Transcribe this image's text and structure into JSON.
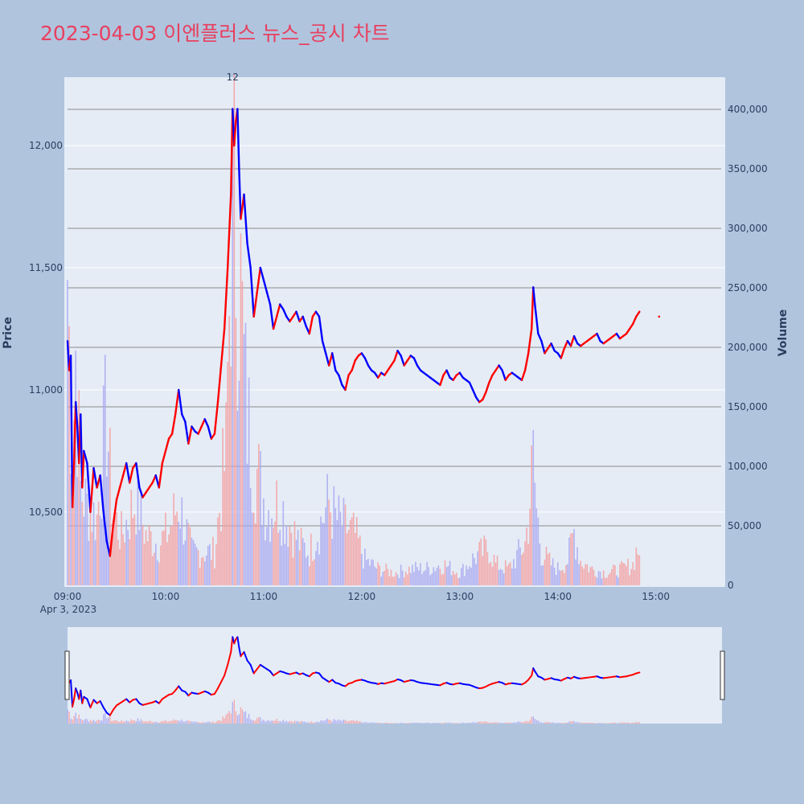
{
  "title": "2023-04-03 이엔플러스 뉴스_공시 차트",
  "colors": {
    "background": "#b0c4de",
    "plot_bg": "#e5ecf6",
    "up": "#ff0000",
    "down": "#0000ff",
    "title": "#e8405f",
    "grid": "#ffffff",
    "vol_grid": "#8c8c8c"
  },
  "chart_data": {
    "type": "line",
    "title": "2023-04-03 이엔플러스 뉴스_공시 차트",
    "price_axis": {
      "label": "Price",
      "range": [
        10200,
        12280
      ],
      "ticks": [
        10500,
        11000,
        11500,
        12000
      ],
      "tick_labels": [
        "10,500",
        "11,000",
        "11,500",
        "12,000"
      ]
    },
    "volume_axis": {
      "label": "Volume",
      "range": [
        0,
        427000
      ],
      "ticks": [
        0,
        50000,
        100000,
        150000,
        200000,
        250000,
        300000,
        350000,
        400000
      ],
      "tick_labels": [
        "0",
        "50,000",
        "100,000",
        "150,000",
        "200,000",
        "250,000",
        "300,000",
        "350,000",
        "400,000"
      ]
    },
    "time_axis": {
      "start_minute": 0,
      "end_minute": 400,
      "tick_minutes": [
        0,
        60,
        120,
        180,
        240,
        300,
        360
      ],
      "tick_labels": [
        "09:00",
        "10:00",
        "11:00",
        "12:00",
        "13:00",
        "14:00",
        "15:00"
      ],
      "date_label": "Apr 3, 2023"
    },
    "annotation": {
      "text": "12",
      "minute": 100
    },
    "price_series": [
      [
        0,
        11200
      ],
      [
        1,
        11080
      ],
      [
        2,
        11140
      ],
      [
        3,
        10520
      ],
      [
        4,
        10700
      ],
      [
        5,
        10950
      ],
      [
        6,
        10850
      ],
      [
        7,
        10700
      ],
      [
        8,
        10900
      ],
      [
        9,
        10600
      ],
      [
        10,
        10750
      ],
      [
        12,
        10700
      ],
      [
        14,
        10500
      ],
      [
        16,
        10680
      ],
      [
        18,
        10600
      ],
      [
        20,
        10650
      ],
      [
        22,
        10500
      ],
      [
        24,
        10380
      ],
      [
        26,
        10320
      ],
      [
        28,
        10450
      ],
      [
        30,
        10550
      ],
      [
        32,
        10600
      ],
      [
        34,
        10650
      ],
      [
        36,
        10700
      ],
      [
        38,
        10620
      ],
      [
        40,
        10680
      ],
      [
        42,
        10700
      ],
      [
        44,
        10600
      ],
      [
        46,
        10560
      ],
      [
        48,
        10580
      ],
      [
        50,
        10600
      ],
      [
        52,
        10620
      ],
      [
        54,
        10650
      ],
      [
        56,
        10600
      ],
      [
        58,
        10700
      ],
      [
        60,
        10750
      ],
      [
        62,
        10800
      ],
      [
        64,
        10820
      ],
      [
        66,
        10900
      ],
      [
        68,
        11000
      ],
      [
        70,
        10900
      ],
      [
        72,
        10870
      ],
      [
        74,
        10780
      ],
      [
        76,
        10850
      ],
      [
        78,
        10830
      ],
      [
        80,
        10820
      ],
      [
        82,
        10850
      ],
      [
        84,
        10880
      ],
      [
        86,
        10850
      ],
      [
        88,
        10800
      ],
      [
        90,
        10820
      ],
      [
        92,
        10950
      ],
      [
        94,
        11100
      ],
      [
        96,
        11250
      ],
      [
        98,
        11500
      ],
      [
        100,
        11800
      ],
      [
        101,
        12150
      ],
      [
        102,
        12000
      ],
      [
        103,
        12100
      ],
      [
        104,
        12150
      ],
      [
        105,
        11900
      ],
      [
        106,
        11700
      ],
      [
        108,
        11800
      ],
      [
        110,
        11600
      ],
      [
        112,
        11500
      ],
      [
        114,
        11300
      ],
      [
        116,
        11400
      ],
      [
        118,
        11500
      ],
      [
        120,
        11450
      ],
      [
        122,
        11400
      ],
      [
        124,
        11350
      ],
      [
        126,
        11250
      ],
      [
        128,
        11300
      ],
      [
        130,
        11350
      ],
      [
        132,
        11330
      ],
      [
        134,
        11300
      ],
      [
        136,
        11280
      ],
      [
        138,
        11300
      ],
      [
        140,
        11320
      ],
      [
        142,
        11280
      ],
      [
        144,
        11300
      ],
      [
        146,
        11260
      ],
      [
        148,
        11230
      ],
      [
        150,
        11300
      ],
      [
        152,
        11320
      ],
      [
        154,
        11300
      ],
      [
        156,
        11200
      ],
      [
        158,
        11150
      ],
      [
        160,
        11100
      ],
      [
        162,
        11150
      ],
      [
        164,
        11080
      ],
      [
        166,
        11060
      ],
      [
        168,
        11020
      ],
      [
        170,
        11000
      ],
      [
        172,
        11060
      ],
      [
        174,
        11080
      ],
      [
        176,
        11120
      ],
      [
        178,
        11140
      ],
      [
        180,
        11150
      ],
      [
        182,
        11130
      ],
      [
        184,
        11100
      ],
      [
        186,
        11080
      ],
      [
        188,
        11070
      ],
      [
        190,
        11050
      ],
      [
        192,
        11070
      ],
      [
        194,
        11060
      ],
      [
        196,
        11080
      ],
      [
        198,
        11100
      ],
      [
        200,
        11120
      ],
      [
        202,
        11160
      ],
      [
        204,
        11140
      ],
      [
        206,
        11100
      ],
      [
        208,
        11120
      ],
      [
        210,
        11140
      ],
      [
        212,
        11130
      ],
      [
        214,
        11100
      ],
      [
        216,
        11080
      ],
      [
        218,
        11070
      ],
      [
        220,
        11060
      ],
      [
        222,
        11050
      ],
      [
        224,
        11040
      ],
      [
        226,
        11030
      ],
      [
        228,
        11020
      ],
      [
        230,
        11060
      ],
      [
        232,
        11080
      ],
      [
        234,
        11050
      ],
      [
        236,
        11040
      ],
      [
        238,
        11060
      ],
      [
        240,
        11070
      ],
      [
        242,
        11050
      ],
      [
        244,
        11040
      ],
      [
        246,
        11030
      ],
      [
        248,
        11000
      ],
      [
        250,
        10970
      ],
      [
        252,
        10950
      ],
      [
        254,
        10960
      ],
      [
        256,
        10990
      ],
      [
        258,
        11030
      ],
      [
        260,
        11060
      ],
      [
        262,
        11080
      ],
      [
        264,
        11100
      ],
      [
        266,
        11080
      ],
      [
        268,
        11040
      ],
      [
        270,
        11060
      ],
      [
        272,
        11070
      ],
      [
        274,
        11060
      ],
      [
        276,
        11050
      ],
      [
        278,
        11040
      ],
      [
        280,
        11080
      ],
      [
        282,
        11150
      ],
      [
        284,
        11250
      ],
      [
        285,
        11420
      ],
      [
        286,
        11350
      ],
      [
        288,
        11230
      ],
      [
        290,
        11200
      ],
      [
        292,
        11150
      ],
      [
        294,
        11170
      ],
      [
        296,
        11190
      ],
      [
        298,
        11160
      ],
      [
        300,
        11150
      ],
      [
        302,
        11130
      ],
      [
        304,
        11170
      ],
      [
        306,
        11200
      ],
      [
        308,
        11180
      ],
      [
        310,
        11220
      ],
      [
        312,
        11190
      ],
      [
        314,
        11180
      ],
      [
        316,
        11190
      ],
      [
        318,
        11200
      ],
      [
        320,
        11210
      ],
      [
        322,
        11220
      ],
      [
        324,
        11230
      ],
      [
        326,
        11200
      ],
      [
        328,
        11190
      ],
      [
        330,
        11200
      ],
      [
        332,
        11210
      ],
      [
        334,
        11220
      ],
      [
        336,
        11230
      ],
      [
        338,
        11210
      ],
      [
        340,
        11220
      ],
      [
        342,
        11230
      ],
      [
        344,
        11250
      ],
      [
        346,
        11270
      ],
      [
        348,
        11300
      ],
      [
        350,
        11320
      ]
    ],
    "volume_peaks": [
      [
        0,
        370000
      ],
      [
        3,
        140000
      ],
      [
        5,
        280000
      ],
      [
        8,
        115000
      ],
      [
        12,
        95000
      ],
      [
        18,
        80000
      ],
      [
        24,
        210000
      ],
      [
        27,
        90000
      ],
      [
        33,
        60000
      ],
      [
        42,
        105000
      ],
      [
        48,
        60000
      ],
      [
        56,
        50000
      ],
      [
        62,
        65000
      ],
      [
        68,
        100000
      ],
      [
        76,
        40000
      ],
      [
        90,
        40000
      ],
      [
        94,
        110000
      ],
      [
        97,
        160000
      ],
      [
        100,
        420000
      ],
      [
        102,
        440000
      ],
      [
        104,
        400000
      ],
      [
        106,
        350000
      ],
      [
        108,
        260000
      ],
      [
        110,
        200000
      ],
      [
        114,
        150000
      ],
      [
        118,
        120000
      ],
      [
        122,
        90000
      ],
      [
        130,
        100000
      ],
      [
        134,
        80000
      ],
      [
        142,
        50000
      ],
      [
        148,
        40000
      ],
      [
        160,
        100000
      ],
      [
        164,
        80000
      ],
      [
        170,
        70000
      ],
      [
        176,
        60000
      ],
      [
        182,
        30000
      ],
      [
        190,
        20000
      ],
      [
        200,
        15000
      ],
      [
        210,
        20000
      ],
      [
        220,
        20000
      ],
      [
        230,
        25000
      ],
      [
        240,
        15000
      ],
      [
        250,
        35000
      ],
      [
        258,
        45000
      ],
      [
        262,
        25000
      ],
      [
        270,
        20000
      ],
      [
        280,
        50000
      ],
      [
        282,
        80000
      ],
      [
        285,
        150000
      ],
      [
        287,
        90000
      ],
      [
        290,
        40000
      ],
      [
        296,
        25000
      ],
      [
        300,
        20000
      ],
      [
        306,
        30000
      ],
      [
        310,
        65000
      ],
      [
        314,
        30000
      ],
      [
        320,
        20000
      ],
      [
        330,
        15000
      ],
      [
        340,
        20000
      ],
      [
        346,
        25000
      ],
      [
        348,
        40000
      ],
      [
        350,
        45000
      ],
      [
        352,
        20000
      ]
    ]
  }
}
